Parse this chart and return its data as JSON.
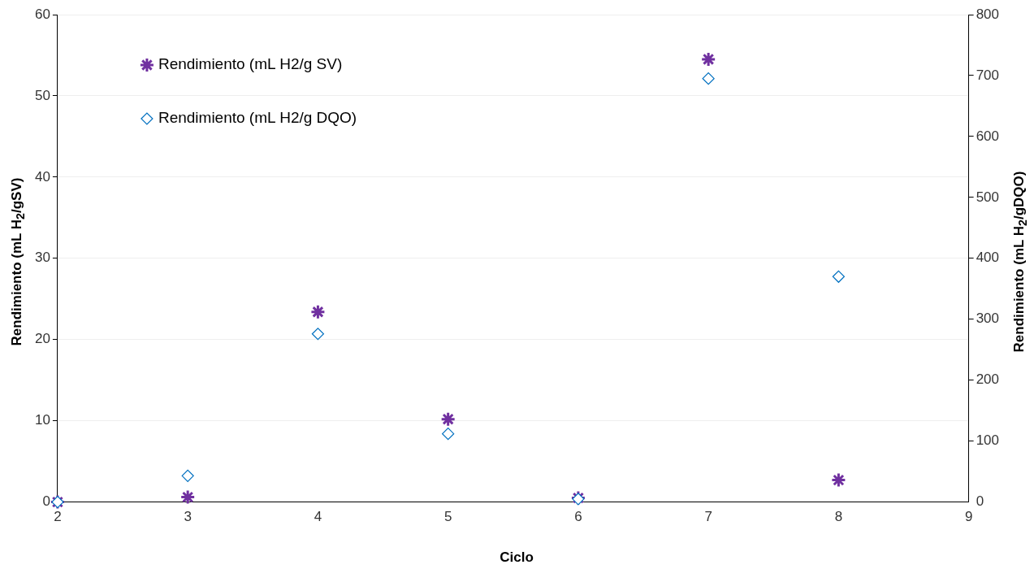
{
  "chart_data": {
    "type": "scatter",
    "xlabel": "Ciclo",
    "ylabel": "Rendimiento (mL H$_{2}$/gSV)",
    "y2label": "Rendimiento (mL H$_{2}$/gDQO)",
    "x": [
      2,
      3,
      4,
      5,
      6,
      7,
      8
    ],
    "series": [
      {
        "name": "Rendimiento (mL H2/g SV)",
        "color": "#7030a0",
        "marker": "cross",
        "values": [
          0,
          0.6,
          23.4,
          10.2,
          0.5,
          54.5,
          2.7
        ]
      },
      {
        "name": "Rendimiento (mL H2/g DQO)",
        "color": "#0070c0",
        "marker": "diamond",
        "axis": "y2",
        "values": [
          0,
          43,
          276,
          112,
          5,
          695,
          370
        ]
      }
    ],
    "xlim": [
      2,
      9
    ],
    "xticks": [
      2,
      3,
      4,
      5,
      6,
      7,
      8,
      9
    ],
    "ylim": [
      0,
      60
    ],
    "yticks": [
      0,
      10,
      20,
      30,
      40,
      50,
      60
    ],
    "y2lim": [
      0,
      800
    ],
    "y2ticks": [
      0,
      100,
      200,
      300,
      400,
      500,
      600,
      700,
      800
    ],
    "grid": "y",
    "legend": "top left"
  }
}
